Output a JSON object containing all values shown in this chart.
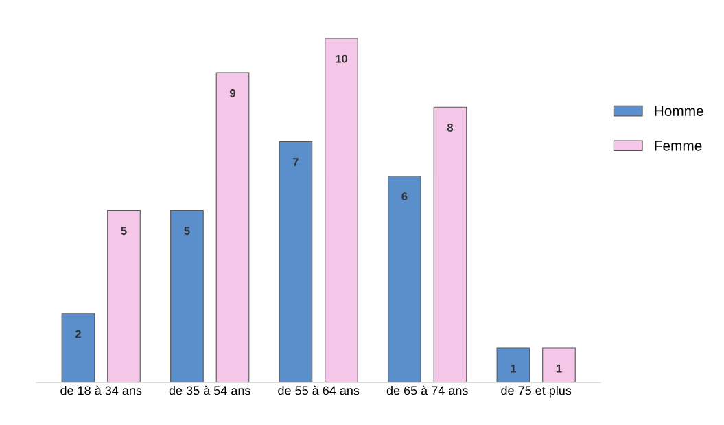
{
  "chart_data": {
    "type": "bar",
    "categories": [
      "de 18 à 34 ans",
      "de 35 à 54 ans",
      "de 55 à 64 ans",
      "de 65 à 74 ans",
      "de 75 et plus"
    ],
    "series": [
      {
        "name": "Homme",
        "color": "#5b8fcb",
        "values": [
          2,
          5,
          7,
          6,
          1
        ]
      },
      {
        "name": "Femme",
        "color": "#f4c6e8",
        "values": [
          5,
          9,
          10,
          8,
          1
        ]
      }
    ],
    "data_labels": true,
    "legend": "right",
    "grid": false,
    "tick_labels": "x"
  }
}
